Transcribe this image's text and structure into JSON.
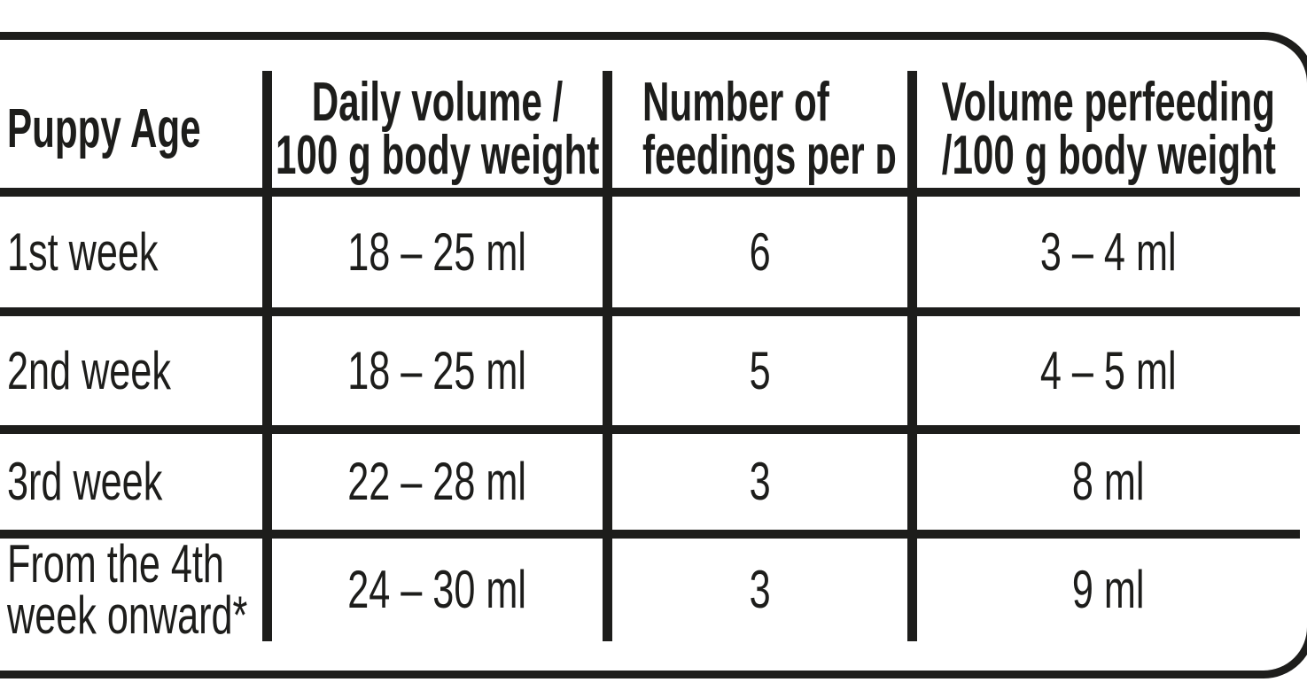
{
  "page": {
    "background_color": "#ffffff",
    "ink_color": "#1d1d1b"
  },
  "chart_data": {
    "type": "table",
    "columns": [
      "Puppy Age",
      "Daily volume / 100 g body weight",
      "Number of feedings per ᴅ",
      "Volume perfeeding /100 g body weight"
    ],
    "rows": [
      [
        "1st week",
        "18 – 25 ml",
        "6",
        "3 – 4 ml"
      ],
      [
        "2nd week",
        "18 – 25 ml",
        "5",
        "4 – 5 ml"
      ],
      [
        "3rd week",
        "22 – 28 ml",
        "3",
        "8 ml"
      ],
      [
        "From the 4th week onward*",
        "24 – 30 ml",
        "3",
        "9 ml"
      ]
    ],
    "layout": {
      "grid": "on",
      "header_row": true,
      "outer_border": "rounded"
    }
  },
  "header_display": {
    "col1": {
      "line1": "Puppy Age"
    },
    "col2": {
      "line1": "Daily volume /",
      "line2": "100 g body weight"
    },
    "col3": {
      "line1": "Number of",
      "line2": "feedings per ᴅ"
    },
    "col4": {
      "line1": "Volume perfeeding",
      "line2": "/100 g body weight"
    }
  },
  "row4_age_display": {
    "line1": "From the 4th",
    "line2": "week onward*"
  }
}
